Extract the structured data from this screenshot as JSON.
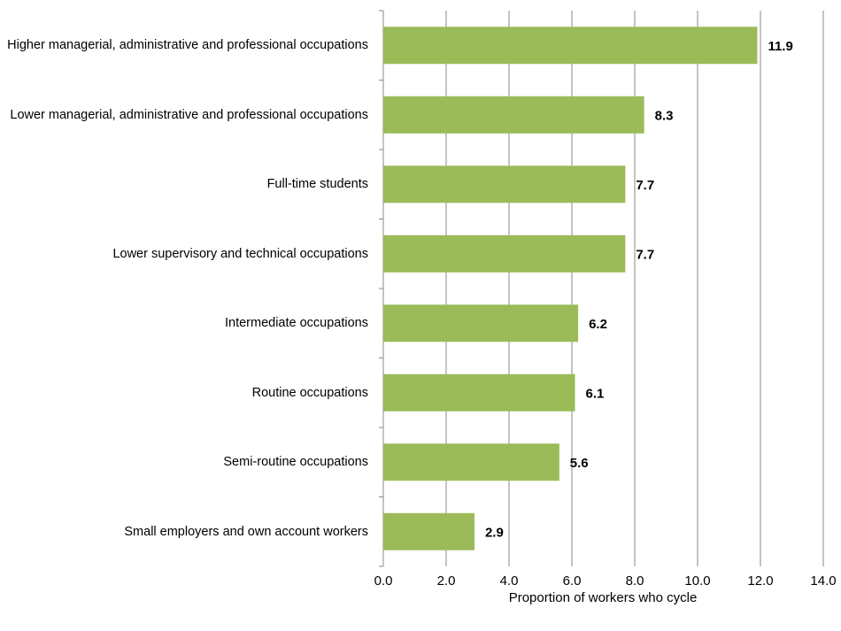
{
  "chart_data": {
    "type": "bar",
    "orientation": "horizontal",
    "categories": [
      "Higher managerial, administrative and professional occupations",
      "Lower managerial, administrative and professional occupations",
      "Full-time students",
      "Lower supervisory and technical occupations",
      "Intermediate occupations",
      "Routine occupations",
      "Semi-routine occupations",
      "Small employers and own account workers"
    ],
    "values": [
      11.9,
      8.3,
      7.7,
      7.7,
      6.2,
      6.1,
      5.6,
      2.9
    ],
    "color": "#9bbb59",
    "x_label": "Proportion of workers who cycle",
    "xlim": [
      0,
      14
    ],
    "xticks": [
      {
        "value": 0,
        "label": "0.0"
      },
      {
        "value": 2,
        "label": "2.0"
      },
      {
        "value": 4,
        "label": "4.0"
      },
      {
        "value": 6,
        "label": "6.0"
      },
      {
        "value": 8,
        "label": "8.0"
      },
      {
        "value": 10,
        "label": "10.0"
      },
      {
        "value": 12,
        "label": "12.0"
      },
      {
        "value": 14,
        "label": "14.0"
      }
    ],
    "grid": true
  }
}
